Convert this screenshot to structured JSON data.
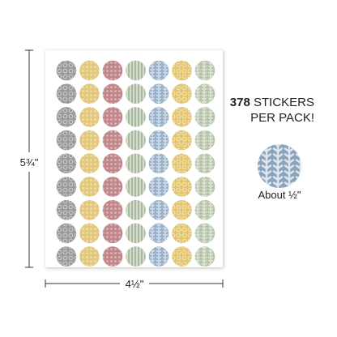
{
  "sheet": {
    "height_label": "5¾\"",
    "width_label": "4½\""
  },
  "callout": {
    "count": "378",
    "count_text": "STICKERS",
    "line2": "PER PACK!",
    "size_label": "About ½\""
  }
}
